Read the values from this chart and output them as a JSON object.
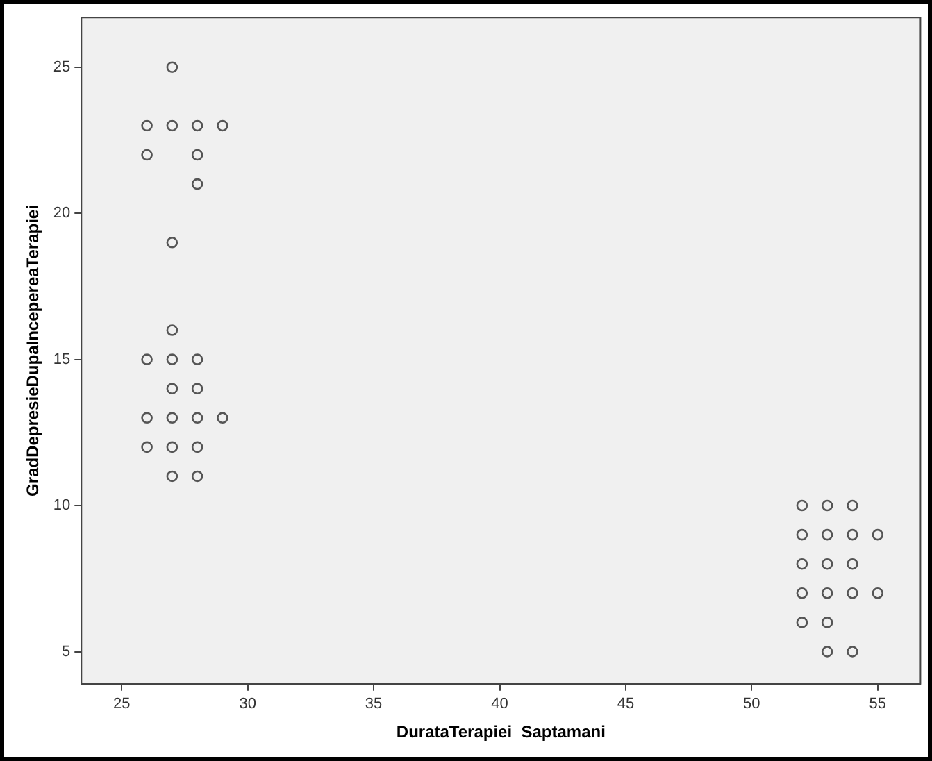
{
  "chart_data": {
    "type": "scatter",
    "xlabel": "DurataTerapiei_Saptamani",
    "ylabel": "GradDepresieDupaIncepereaTerapiei",
    "xlim": [
      23.4,
      56.7
    ],
    "ylim": [
      3.9,
      26.7
    ],
    "xticks": [
      25,
      30,
      35,
      40,
      45,
      50,
      55
    ],
    "yticks": [
      5,
      10,
      15,
      20,
      25
    ],
    "grid": false,
    "legend": false,
    "marker": "circle",
    "series": [
      {
        "color": "#555555",
        "x": [
          27,
          26,
          27,
          28,
          29,
          26,
          28,
          28,
          27,
          27,
          26,
          27,
          28,
          27,
          28,
          26,
          27,
          28,
          29,
          26,
          27,
          28,
          27,
          28,
          52,
          53,
          54,
          52,
          53,
          54,
          55,
          52,
          53,
          54,
          52,
          53,
          54,
          55,
          52,
          53,
          53,
          54
        ],
        "values": [
          25,
          23,
          23,
          23,
          23,
          22,
          22,
          21,
          19,
          16,
          15,
          15,
          15,
          14,
          14,
          13,
          13,
          13,
          13,
          12,
          12,
          12,
          11,
          11,
          10,
          10,
          10,
          9,
          9,
          9,
          9,
          8,
          8,
          8,
          7,
          7,
          7,
          7,
          6,
          6,
          5,
          5
        ]
      }
    ]
  }
}
